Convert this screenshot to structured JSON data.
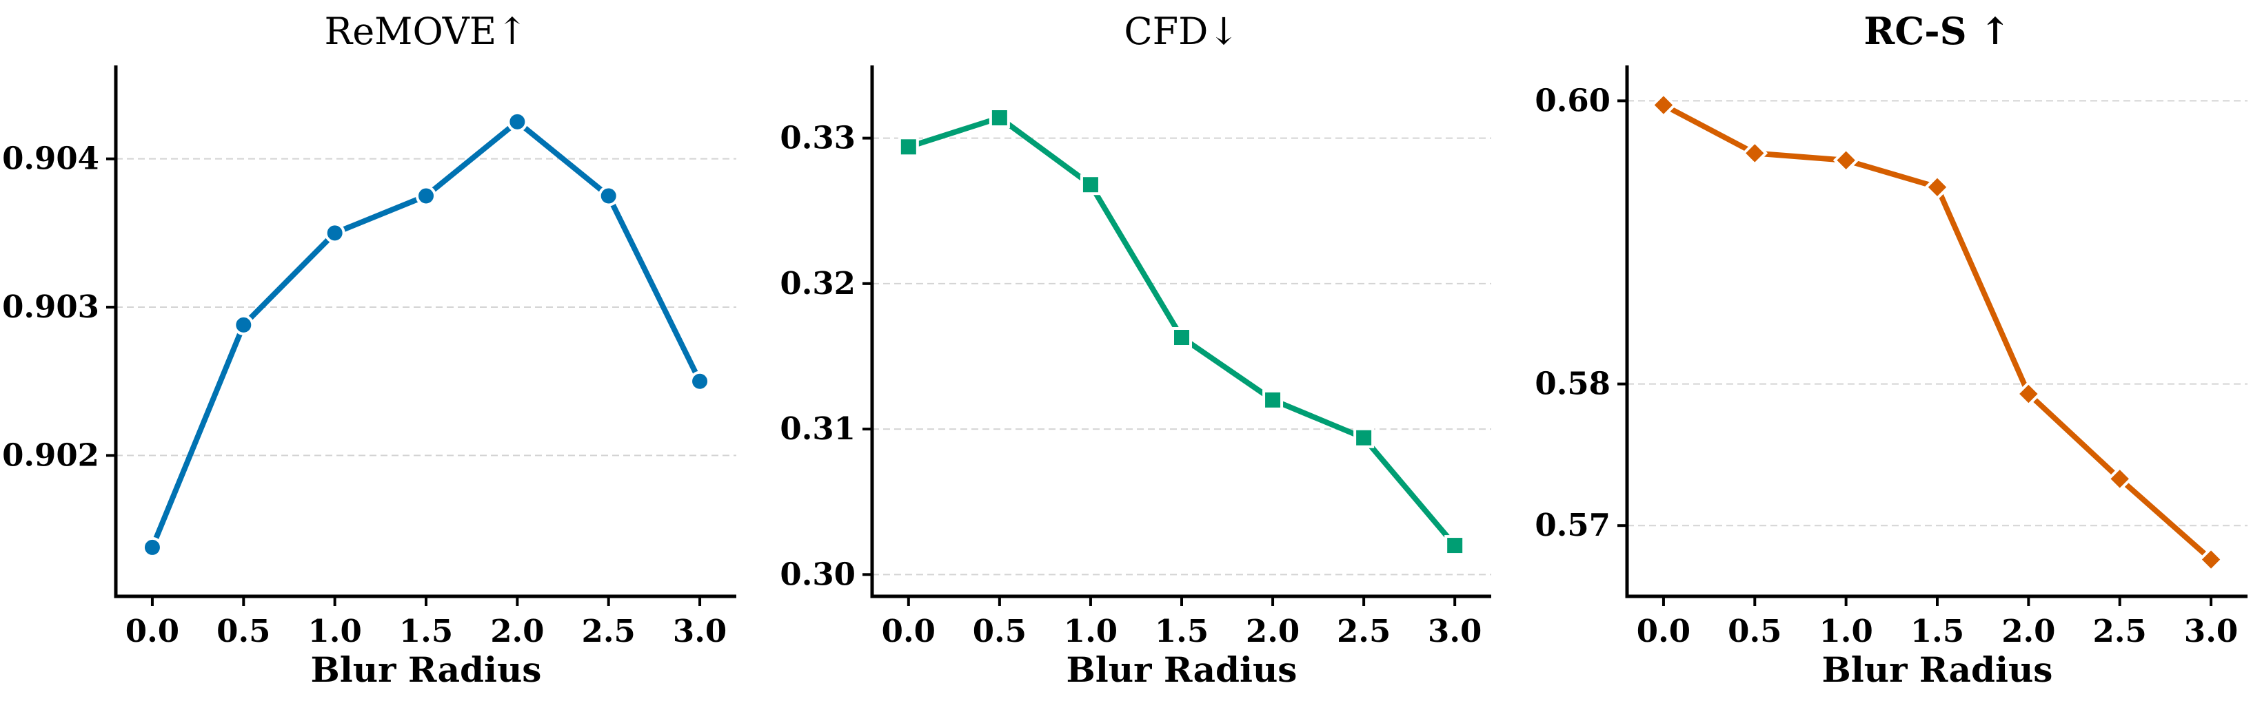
{
  "chart_data": [
    {
      "type": "line",
      "title": "ReMOVE↑",
      "title_bold": false,
      "xlabel": "Blur Radius",
      "ylabel": "",
      "x": [
        0.0,
        0.5,
        1.0,
        1.5,
        2.0,
        2.5,
        3.0
      ],
      "xtick_labels": [
        "0.0",
        "0.5",
        "1.0",
        "1.5",
        "2.0",
        "2.5",
        "3.0"
      ],
      "xlim": [
        -0.2,
        3.2
      ],
      "ylim": [
        0.90105,
        0.90463
      ],
      "yticks": [
        0.902,
        0.903,
        0.904
      ],
      "ytick_labels": [
        "0.902",
        "0.903",
        "0.904"
      ],
      "grid": "horizontal dashed",
      "series": [
        {
          "values": [
            0.90138,
            0.90288,
            0.9035,
            0.90375,
            0.90425,
            0.90375,
            0.9025
          ],
          "color": "#0072b2",
          "marker": "circle"
        }
      ]
    },
    {
      "type": "line",
      "title": "CFD↓",
      "title_bold": false,
      "xlabel": "Blur Radius",
      "ylabel": "",
      "x": [
        0.0,
        0.5,
        1.0,
        1.5,
        2.0,
        2.5,
        3.0
      ],
      "xtick_labels": [
        "0.0",
        "0.5",
        "1.0",
        "1.5",
        "2.0",
        "2.5",
        "3.0"
      ],
      "xlim": [
        -0.2,
        3.2
      ],
      "ylim": [
        0.2985,
        0.335
      ],
      "yticks": [
        0.3,
        0.31,
        0.32,
        0.33
      ],
      "ytick_labels": [
        "0.30",
        "0.31",
        "0.32",
        "0.33"
      ],
      "grid": "horizontal dashed",
      "series": [
        {
          "values": [
            0.3294,
            0.3314,
            0.3268,
            0.3163,
            0.312,
            0.3094,
            0.302
          ],
          "color": "#009e73",
          "marker": "square"
        }
      ]
    },
    {
      "type": "line",
      "title": "RC-S ↑",
      "title_bold": true,
      "xlabel": "Blur Radius",
      "ylabel": "",
      "x": [
        0.0,
        0.5,
        1.0,
        1.5,
        2.0,
        2.5,
        3.0
      ],
      "xtick_labels": [
        "0.0",
        "0.5",
        "1.0",
        "1.5",
        "2.0",
        "2.5",
        "3.0"
      ],
      "xlim": [
        -0.2,
        3.2
      ],
      "ylim": [
        0.565,
        0.6025
      ],
      "yticks": [
        0.57,
        0.58,
        0.6
      ],
      "ytick_labels": [
        "0.57",
        "0.58",
        "0.60"
      ],
      "grid": "horizontal dashed",
      "series": [
        {
          "values": [
            0.5997,
            0.5963,
            0.5958,
            0.5939,
            0.5793,
            0.5733,
            0.5676
          ],
          "color": "#d55e00",
          "marker": "diamond"
        }
      ]
    }
  ]
}
